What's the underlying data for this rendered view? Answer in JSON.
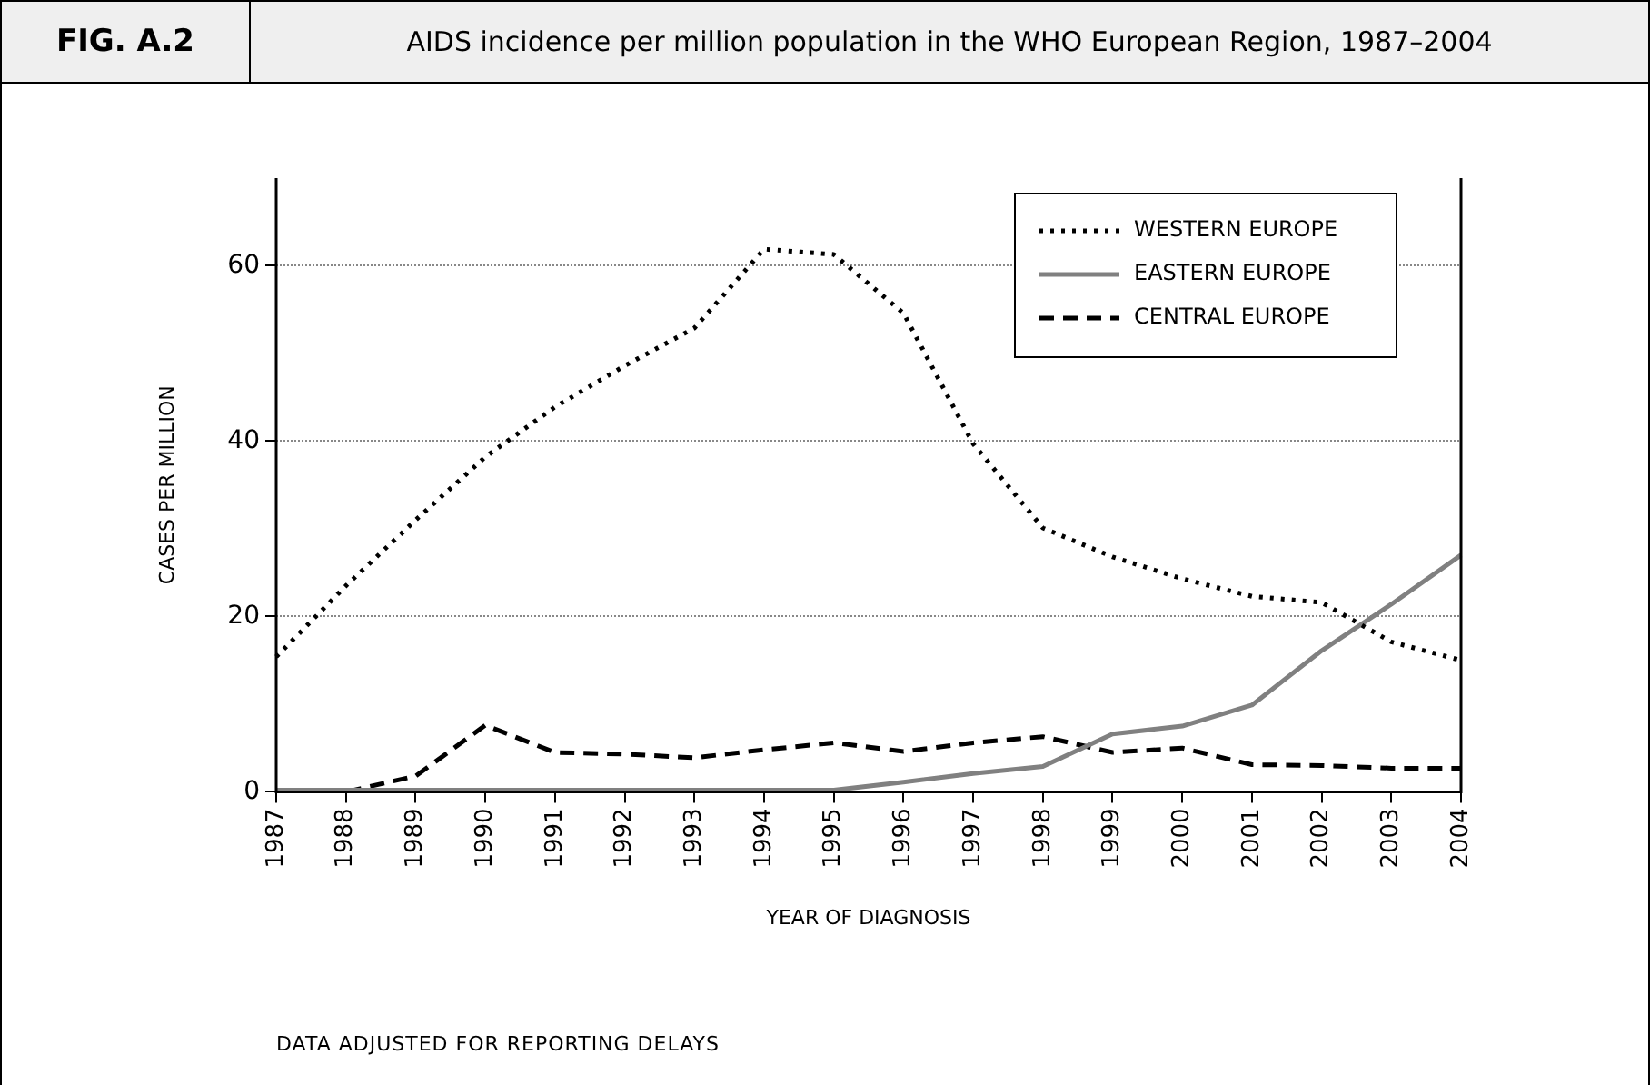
{
  "chart_data": {
    "type": "line",
    "title": "AIDS incidence per million population in the WHO European Region, 1987–2004",
    "xlabel": "YEAR OF DIAGNOSIS",
    "ylabel": "CASES PER MILLION",
    "annotations": [
      "FIG. A.2",
      "DATA ADJUSTED FOR REPORTING DELAYS"
    ],
    "categories": [
      "1987",
      "1988",
      "1989",
      "1990",
      "1991",
      "1992",
      "1993",
      "1994",
      "1995",
      "1996",
      "1997",
      "1998",
      "1999",
      "2000",
      "2001",
      "2002",
      "2003",
      "2004"
    ],
    "series": [
      {
        "name": "WESTERN EUROPE",
        "color": "#000000",
        "line_style": "dotted",
        "values": [
          15.4,
          23.5,
          31,
          38.2,
          43.9,
          48.6,
          52.9,
          61.9,
          61.3,
          54.6,
          39.7,
          30.1,
          26.8,
          24.3,
          22.3,
          21.6,
          17.1,
          15
        ]
      },
      {
        "name": "EASTERN EUROPE",
        "color": "#808080",
        "line_style": "solid",
        "values": [
          0.2,
          0.2,
          0.2,
          0.2,
          0.2,
          0.2,
          0.2,
          0.2,
          0.2,
          1.1,
          2.1,
          2.9,
          6.6,
          7.5,
          9.9,
          16.1,
          21.4,
          27
        ]
      },
      {
        "name": "CENTRAL EUROPE",
        "color": "#000000",
        "line_style": "dashed",
        "values": [
          0,
          0,
          1.8,
          7.6,
          4.5,
          4.3,
          3.9,
          4.8,
          5.6,
          4.6,
          5.6,
          6.3,
          4.5,
          5,
          3.1,
          3,
          2.7,
          2.7
        ]
      }
    ],
    "ylim": [
      0,
      70
    ],
    "yticks": [
      0,
      20,
      40,
      60
    ],
    "grid": "y",
    "legend": "top right",
    "marker": "none"
  }
}
